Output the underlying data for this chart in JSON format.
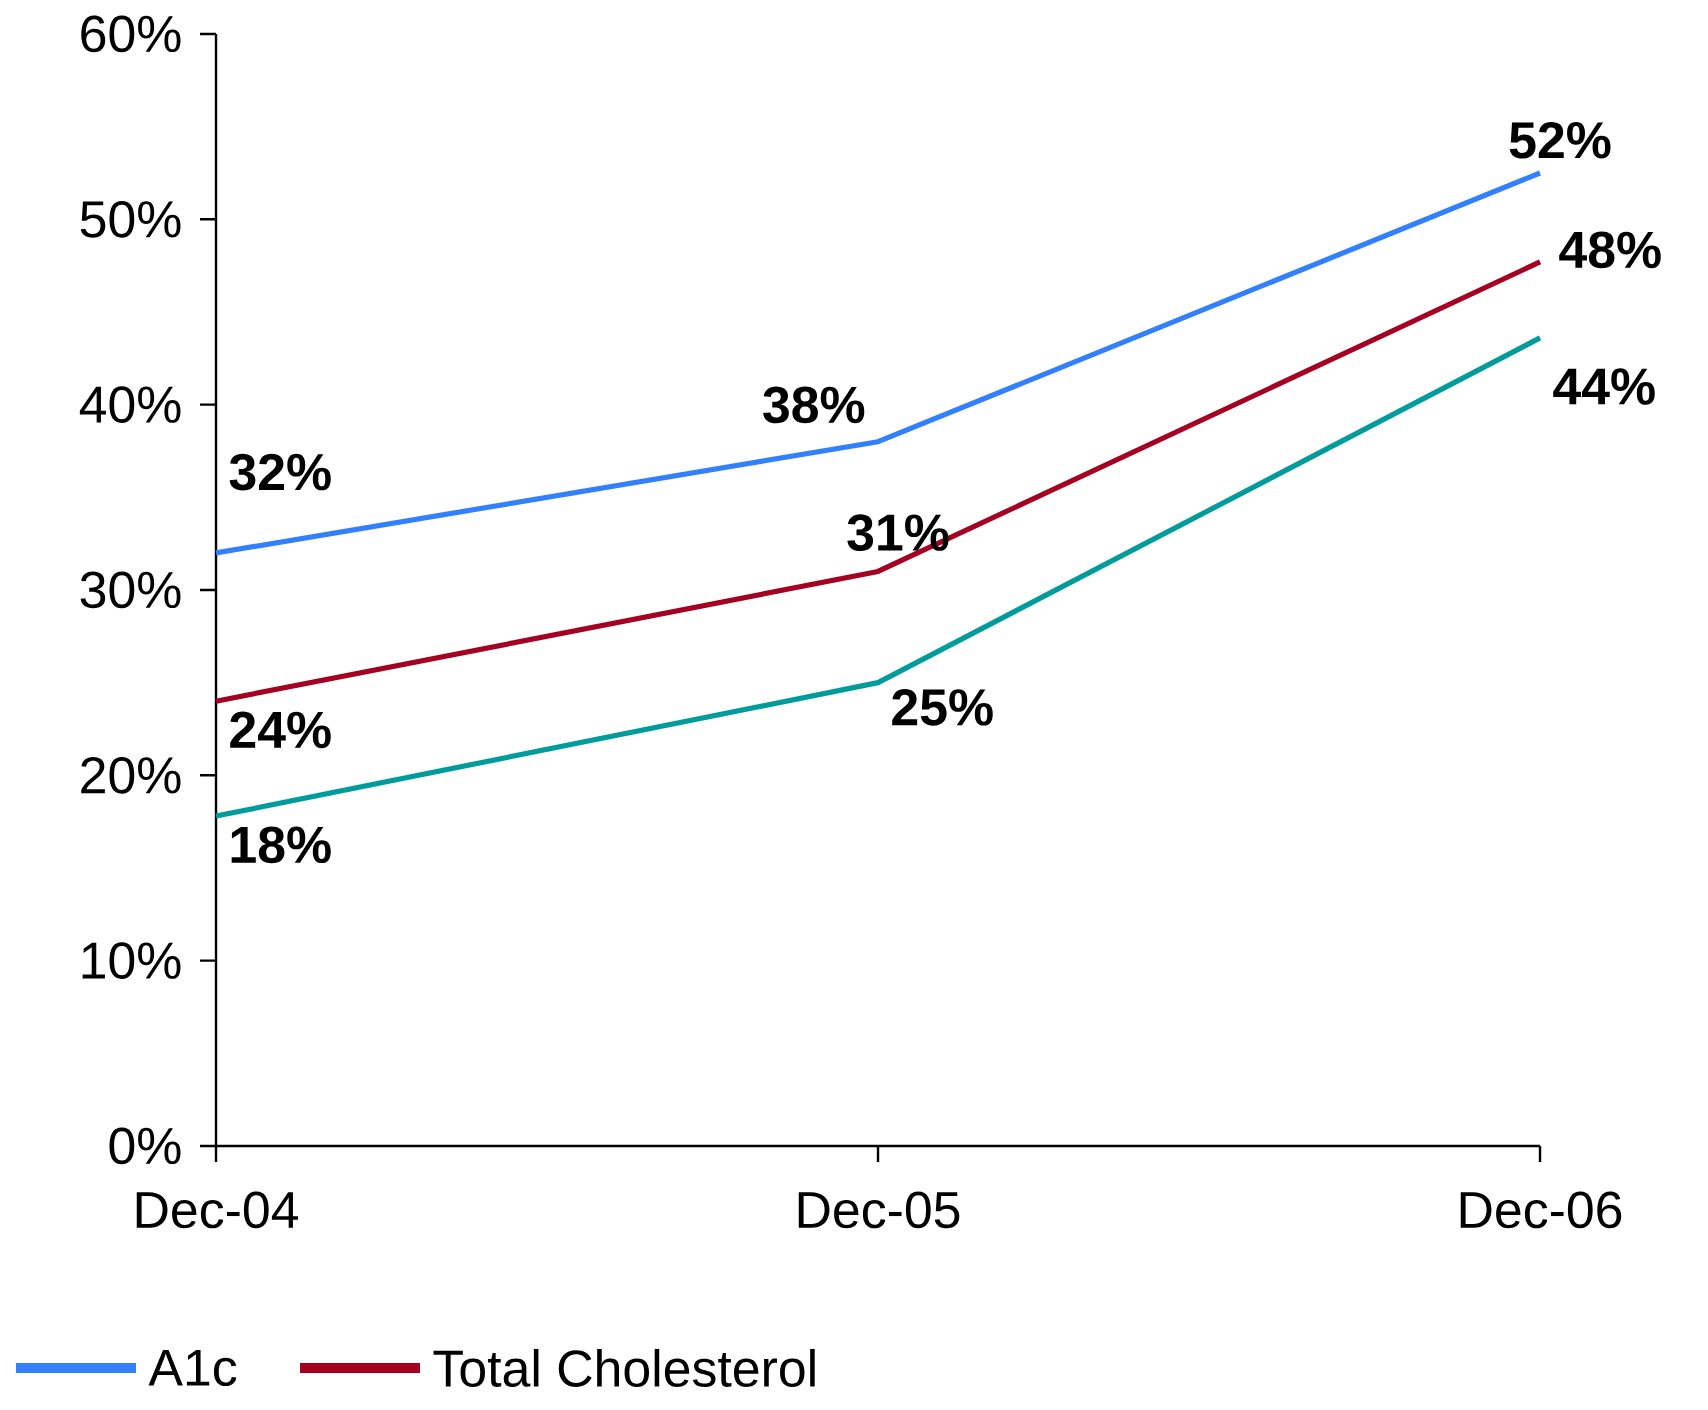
{
  "chart_data": {
    "type": "line",
    "categories": [
      "Dec-04",
      "Dec-05",
      "Dec-06"
    ],
    "series": [
      {
        "name": "A1c",
        "color": "#3380ff",
        "values": [
          32,
          38,
          52.5
        ],
        "value_labels": [
          "32%",
          "38%",
          "52%"
        ]
      },
      {
        "name": "Total Cholesterol",
        "color": "#a50021",
        "values": [
          24,
          31,
          47.7
        ],
        "value_labels": [
          "24%",
          "31%",
          "48%"
        ]
      },
      {
        "color": "#009b9b",
        "values": [
          17.8,
          25,
          43.6
        ],
        "value_labels": [
          "18%",
          "25%",
          "44%"
        ]
      }
    ],
    "ylim": [
      0,
      60
    ],
    "yticks": [
      {
        "value": 0,
        "label": "0%"
      },
      {
        "value": 10,
        "label": "10%"
      },
      {
        "value": 20,
        "label": "20%"
      },
      {
        "value": 30,
        "label": "30%"
      },
      {
        "value": 40,
        "label": "40%"
      },
      {
        "value": 50,
        "label": "50%"
      },
      {
        "value": 60,
        "label": "60%"
      }
    ],
    "grid": false,
    "legend": "bottom",
    "marker": "none",
    "line_style": "solid"
  }
}
